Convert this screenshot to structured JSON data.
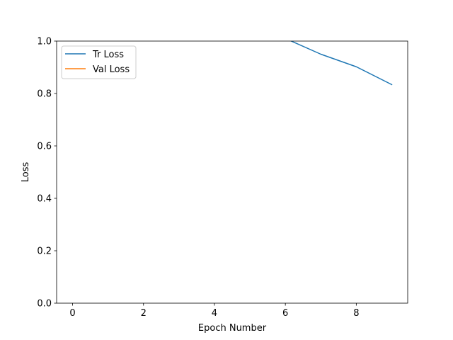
{
  "chart_data": {
    "type": "line",
    "title": "",
    "xlabel": "Epoch Number",
    "ylabel": "Loss",
    "xlim": [
      -0.45,
      9.45
    ],
    "ylim": [
      0.0,
      1.0
    ],
    "xticks": [
      0,
      2,
      4,
      6,
      8
    ],
    "yticks": [
      0.0,
      0.2,
      0.4,
      0.6,
      0.8,
      1.0
    ],
    "xtick_labels": [
      "0",
      "2",
      "4",
      "6",
      "8"
    ],
    "ytick_labels": [
      "0.0",
      "0.2",
      "0.4",
      "0.6",
      "0.8",
      "1.0"
    ],
    "grid": false,
    "legend_position": "top-left",
    "series": [
      {
        "name": "Tr Loss",
        "color": "#1f77b4",
        "x": [
          0,
          1,
          2,
          3,
          4,
          5,
          6,
          7,
          8,
          9
        ],
        "y": [
          null,
          null,
          null,
          null,
          null,
          null,
          1.01,
          0.95,
          0.902,
          0.834
        ]
      },
      {
        "name": "Val Loss",
        "color": "#ff7f0e",
        "x": [],
        "y": []
      }
    ]
  }
}
